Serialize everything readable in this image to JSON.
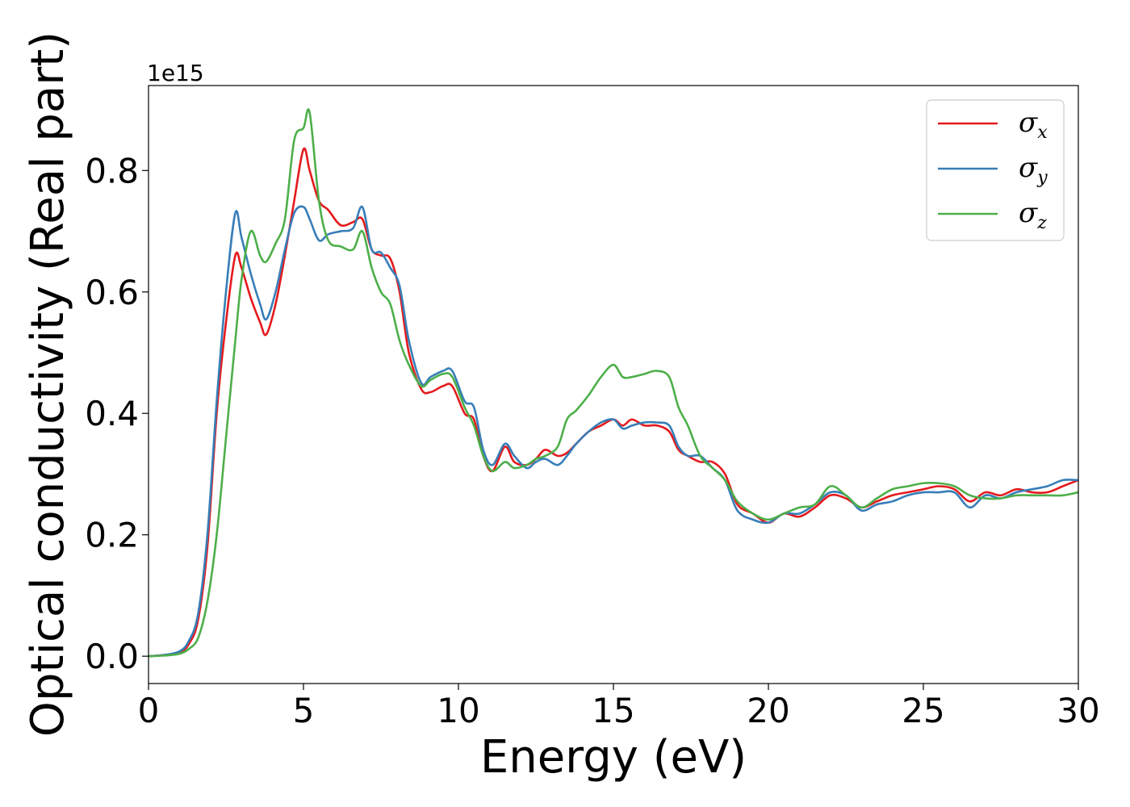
{
  "chart_data": {
    "type": "line",
    "title": "",
    "xlabel": "Energy (eV)",
    "ylabel": "Optical conductivity (Real part)",
    "y_offset_text": "1e15",
    "xlim": [
      0,
      30
    ],
    "ylim": [
      -0.045,
      0.94
    ],
    "xticks": [
      0,
      5,
      10,
      15,
      20,
      25,
      30
    ],
    "xtick_labels": [
      "0",
      "5",
      "10",
      "15",
      "20",
      "25",
      "30"
    ],
    "yticks": [
      0.0,
      0.2,
      0.4,
      0.6,
      0.8
    ],
    "ytick_labels": [
      "0.0",
      "0.2",
      "0.4",
      "0.6",
      "0.8"
    ],
    "grid": false,
    "legend_position": "top-right",
    "series": [
      {
        "name": "σx",
        "label_base": "σ",
        "label_sub": "x",
        "color": "#e41a1c",
        "x": [
          0,
          0.5,
          1,
          1.3,
          1.6,
          1.9,
          2.2,
          2.5,
          2.8,
          3.0,
          3.3,
          3.6,
          3.8,
          4.1,
          4.4,
          4.7,
          5.0,
          5.2,
          5.5,
          5.8,
          6.2,
          6.6,
          6.9,
          7.2,
          7.5,
          7.8,
          8.1,
          8.4,
          8.8,
          9.1,
          9.5,
          9.8,
          10.2,
          10.5,
          10.8,
          11.1,
          11.5,
          11.8,
          12.2,
          12.5,
          12.8,
          13.2,
          13.5,
          13.8,
          14.2,
          14.6,
          15.0,
          15.3,
          15.6,
          16.0,
          16.4,
          16.8,
          17.1,
          17.4,
          17.8,
          18.2,
          18.6,
          19.0,
          19.5,
          20.0,
          20.5,
          21.0,
          21.5,
          22.0,
          22.5,
          23.0,
          23.5,
          24.0,
          24.5,
          25.0,
          25.5,
          26.0,
          26.5,
          27.0,
          27.5,
          28.0,
          28.5,
          29.0,
          29.5,
          30.0
        ],
        "y": [
          0.0,
          0.002,
          0.006,
          0.02,
          0.06,
          0.18,
          0.4,
          0.55,
          0.66,
          0.64,
          0.59,
          0.55,
          0.53,
          0.58,
          0.66,
          0.75,
          0.835,
          0.8,
          0.75,
          0.735,
          0.71,
          0.715,
          0.72,
          0.67,
          0.66,
          0.655,
          0.6,
          0.5,
          0.44,
          0.435,
          0.445,
          0.445,
          0.4,
          0.39,
          0.33,
          0.305,
          0.345,
          0.32,
          0.315,
          0.325,
          0.34,
          0.33,
          0.335,
          0.35,
          0.37,
          0.38,
          0.39,
          0.38,
          0.39,
          0.38,
          0.38,
          0.37,
          0.34,
          0.33,
          0.32,
          0.32,
          0.3,
          0.25,
          0.235,
          0.22,
          0.235,
          0.23,
          0.245,
          0.265,
          0.26,
          0.245,
          0.255,
          0.265,
          0.27,
          0.275,
          0.28,
          0.275,
          0.255,
          0.27,
          0.265,
          0.275,
          0.27,
          0.27,
          0.28,
          0.29
        ]
      },
      {
        "name": "σy",
        "label_base": "σ",
        "label_sub": "y",
        "color": "#377eb8",
        "x": [
          0,
          0.5,
          1,
          1.3,
          1.6,
          1.9,
          2.2,
          2.5,
          2.8,
          3.0,
          3.3,
          3.6,
          3.8,
          4.1,
          4.4,
          4.7,
          5.0,
          5.2,
          5.5,
          5.8,
          6.2,
          6.6,
          6.9,
          7.2,
          7.5,
          7.8,
          8.1,
          8.4,
          8.8,
          9.1,
          9.5,
          9.8,
          10.2,
          10.5,
          10.8,
          11.1,
          11.5,
          11.8,
          12.2,
          12.5,
          12.8,
          13.2,
          13.5,
          13.8,
          14.2,
          14.6,
          15.0,
          15.3,
          15.6,
          16.0,
          16.4,
          16.8,
          17.1,
          17.4,
          17.8,
          18.2,
          18.6,
          19.0,
          19.5,
          20.0,
          20.5,
          21.0,
          21.5,
          22.0,
          22.5,
          23.0,
          23.5,
          24.0,
          24.5,
          25.0,
          25.5,
          26.0,
          26.5,
          27.0,
          27.5,
          28.0,
          28.5,
          29.0,
          29.5,
          30.0
        ],
        "y": [
          0.0,
          0.002,
          0.008,
          0.025,
          0.07,
          0.2,
          0.42,
          0.6,
          0.73,
          0.69,
          0.63,
          0.58,
          0.555,
          0.6,
          0.67,
          0.73,
          0.74,
          0.72,
          0.685,
          0.695,
          0.7,
          0.705,
          0.74,
          0.67,
          0.665,
          0.64,
          0.61,
          0.52,
          0.45,
          0.46,
          0.47,
          0.47,
          0.42,
          0.41,
          0.34,
          0.315,
          0.35,
          0.33,
          0.31,
          0.32,
          0.325,
          0.315,
          0.33,
          0.35,
          0.37,
          0.385,
          0.39,
          0.375,
          0.38,
          0.385,
          0.385,
          0.38,
          0.345,
          0.33,
          0.33,
          0.31,
          0.29,
          0.24,
          0.225,
          0.22,
          0.235,
          0.235,
          0.25,
          0.27,
          0.265,
          0.24,
          0.25,
          0.255,
          0.265,
          0.27,
          0.27,
          0.27,
          0.245,
          0.265,
          0.26,
          0.27,
          0.275,
          0.28,
          0.29,
          0.29
        ]
      },
      {
        "name": "σz",
        "label_base": "σ",
        "label_sub": "z",
        "color": "#4daf4a",
        "x": [
          0,
          0.5,
          1,
          1.3,
          1.6,
          1.9,
          2.2,
          2.5,
          2.8,
          3.0,
          3.3,
          3.6,
          3.8,
          4.1,
          4.4,
          4.7,
          5.0,
          5.2,
          5.5,
          5.8,
          6.2,
          6.6,
          6.9,
          7.2,
          7.5,
          7.8,
          8.1,
          8.4,
          8.8,
          9.1,
          9.5,
          9.8,
          10.2,
          10.5,
          10.8,
          11.1,
          11.5,
          11.8,
          12.2,
          12.5,
          12.8,
          13.2,
          13.5,
          13.8,
          14.2,
          14.6,
          15.0,
          15.3,
          15.6,
          16.0,
          16.4,
          16.8,
          17.1,
          17.4,
          17.8,
          18.2,
          18.6,
          19.0,
          19.5,
          20.0,
          20.5,
          21.0,
          21.5,
          22.0,
          22.5,
          23.0,
          23.5,
          24.0,
          24.5,
          25.0,
          25.5,
          26.0,
          26.5,
          27.0,
          27.5,
          28.0,
          28.5,
          29.0,
          29.5,
          30.0
        ],
        "y": [
          0.0,
          0.001,
          0.004,
          0.012,
          0.03,
          0.09,
          0.2,
          0.36,
          0.52,
          0.62,
          0.7,
          0.66,
          0.65,
          0.68,
          0.72,
          0.85,
          0.87,
          0.895,
          0.75,
          0.685,
          0.675,
          0.67,
          0.7,
          0.64,
          0.6,
          0.58,
          0.52,
          0.48,
          0.445,
          0.455,
          0.465,
          0.46,
          0.41,
          0.38,
          0.33,
          0.305,
          0.32,
          0.31,
          0.315,
          0.325,
          0.33,
          0.345,
          0.39,
          0.405,
          0.43,
          0.46,
          0.48,
          0.46,
          0.46,
          0.465,
          0.47,
          0.46,
          0.41,
          0.38,
          0.33,
          0.31,
          0.29,
          0.255,
          0.235,
          0.225,
          0.235,
          0.245,
          0.25,
          0.28,
          0.265,
          0.245,
          0.26,
          0.275,
          0.28,
          0.285,
          0.285,
          0.28,
          0.265,
          0.26,
          0.26,
          0.265,
          0.265,
          0.265,
          0.265,
          0.27
        ]
      }
    ]
  }
}
